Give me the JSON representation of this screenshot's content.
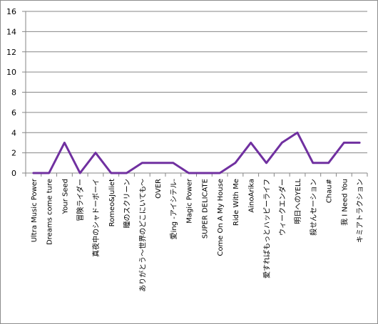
{
  "chart_data": {
    "type": "line",
    "title": "",
    "xlabel": "",
    "ylabel": "",
    "ylim": [
      0,
      16
    ],
    "yticks": [
      0,
      2,
      4,
      6,
      8,
      10,
      12,
      14,
      16
    ],
    "grid": "horizontal",
    "legend": "none",
    "colors": {
      "line": "#7030a0",
      "grid": "#868686",
      "axis": "#868686"
    },
    "categories": [
      "Ultra Music Power",
      "Dreams come ture",
      "Your Seed",
      "冒険ライダー",
      "真夜中のシャドーボーイ",
      "Romeo&Juliet",
      "瞳のスクリーン",
      "ありがとう〜世界のどこにいても〜",
      "OVER",
      "愛ing -アイシテル-",
      "Magic Power",
      "SUPER DELICATE",
      "Come On A My House",
      "Ride With Me",
      "AinoArika",
      "愛すればもっとハッピーライフ",
      "ウィークエンダー",
      "明日へのYELL",
      "殺せんセーション",
      "Chau#",
      "我 I Need You",
      "キミアトラクション"
    ],
    "series": [
      {
        "values": [
          0,
          0,
          3,
          0,
          2,
          0,
          0,
          1,
          1,
          1,
          0,
          0,
          0,
          1,
          3,
          1,
          3,
          4,
          1,
          1,
          3,
          3
        ]
      }
    ]
  }
}
